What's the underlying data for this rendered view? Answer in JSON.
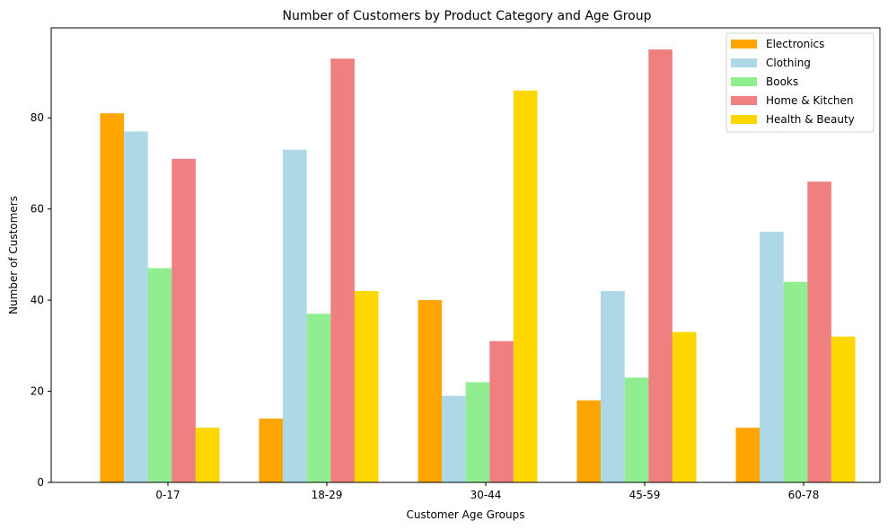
{
  "chart_data": {
    "type": "bar",
    "title": "Number of Customers by Product Category and Age Group",
    "xlabel": "Customer Age Groups",
    "ylabel": "Number of Customers",
    "categories": [
      "0-17",
      "18-29",
      "30-44",
      "45-59",
      "60-78"
    ],
    "ylim": [
      0,
      100
    ],
    "yticks": [
      0,
      20,
      40,
      60,
      80
    ],
    "grid": false,
    "legend_position": "top-right",
    "series": [
      {
        "name": "Electronics",
        "color": "#ffa500",
        "values": [
          81,
          14,
          40,
          18,
          12
        ]
      },
      {
        "name": "Clothing",
        "color": "#add8e6",
        "values": [
          77,
          73,
          19,
          42,
          55
        ]
      },
      {
        "name": "Books",
        "color": "#90ee90",
        "values": [
          47,
          37,
          22,
          23,
          44
        ]
      },
      {
        "name": "Home & Kitchen",
        "color": "#f08080",
        "values": [
          71,
          93,
          31,
          95,
          66
        ]
      },
      {
        "name": "Health & Beauty",
        "color": "#ffd700",
        "values": [
          12,
          42,
          86,
          33,
          32
        ]
      }
    ]
  }
}
